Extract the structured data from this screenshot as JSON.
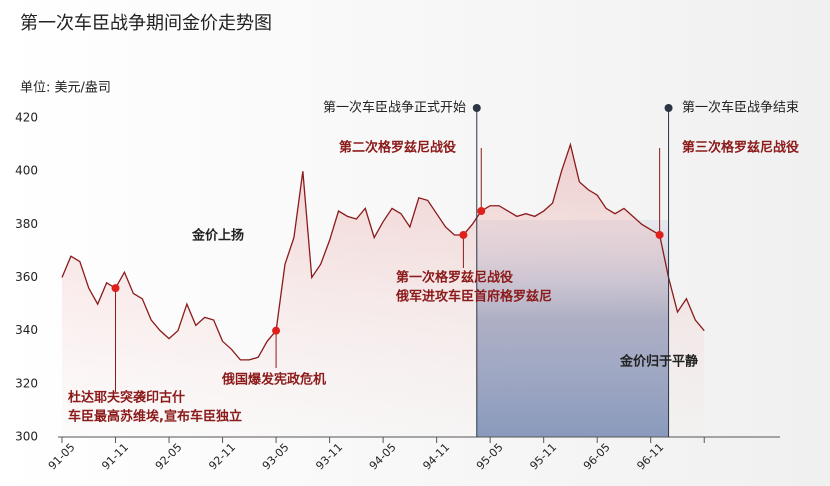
{
  "chart_data": {
    "type": "line",
    "title": "第一次车臣战争期间金价走势图",
    "y_label": "单位: 美元/盎司",
    "categories": [
      "91-05",
      null,
      null,
      null,
      null,
      null,
      "91-11",
      null,
      null,
      null,
      null,
      null,
      "92-05",
      null,
      null,
      null,
      null,
      null,
      "92-11",
      null,
      null,
      null,
      null,
      null,
      "93-05",
      null,
      null,
      null,
      null,
      null,
      "93-11",
      null,
      null,
      null,
      null,
      null,
      "94-05",
      null,
      null,
      null,
      null,
      null,
      "94-11",
      null,
      null,
      null,
      null,
      null,
      "95-05",
      null,
      null,
      null,
      null,
      null,
      "95-11",
      null,
      null,
      null,
      null,
      null,
      "96-05",
      null,
      null,
      null,
      null,
      null,
      "96-11",
      null,
      null,
      null,
      null,
      null,
      null
    ],
    "values": [
      360,
      368,
      366,
      356,
      350,
      358,
      356,
      362,
      354,
      352,
      344,
      340,
      337,
      340,
      350,
      342,
      345,
      344,
      336,
      333,
      329,
      329,
      330,
      336,
      340,
      365,
      375,
      400,
      360,
      365,
      374,
      385,
      383,
      382,
      386,
      375,
      381,
      386,
      384,
      379,
      390,
      389,
      384,
      379,
      376,
      376,
      380,
      385,
      387,
      387,
      385,
      383,
      384,
      383,
      385,
      388,
      400,
      410,
      396,
      393,
      391,
      386,
      384,
      386,
      383,
      380,
      378,
      376,
      360,
      347,
      352,
      344,
      340
    ],
    "color": "#8b1a1a",
    "ylim": [
      300,
      420
    ],
    "yticks": [
      300,
      320,
      340,
      360,
      380,
      400,
      420
    ],
    "annotations": [
      [
        "第一次车臣战争正式开始"
      ],
      [
        "第一次车臣战争结束"
      ],
      [
        "第二次格罗兹尼战役"
      ],
      [
        "第三次格罗兹尼战役"
      ],
      [
        "金价上扬"
      ],
      [
        "第一次格罗兹尼战役",
        "俄军进攻车臣首府格罗兹尼"
      ],
      [
        "杜达耶夫突袭印古什",
        "车臣最高苏维埃,宣布车臣独立"
      ],
      [
        "俄国爆发宪政危机"
      ],
      [
        "金价归于平静"
      ]
    ]
  }
}
